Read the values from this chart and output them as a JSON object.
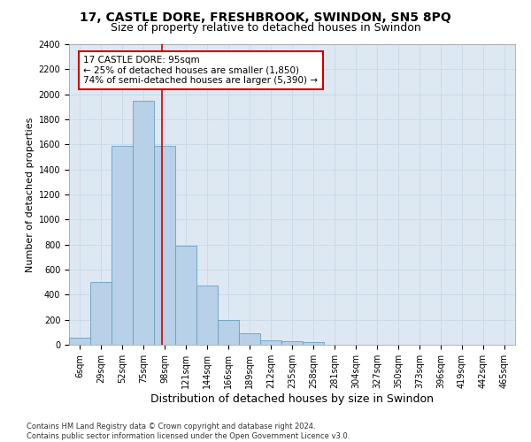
{
  "title1": "17, CASTLE DORE, FRESHBROOK, SWINDON, SN5 8PQ",
  "title2": "Size of property relative to detached houses in Swindon",
  "xlabel": "Distribution of detached houses by size in Swindon",
  "ylabel": "Number of detached properties",
  "footnote1": "Contains HM Land Registry data © Crown copyright and database right 2024.",
  "footnote2": "Contains public sector information licensed under the Open Government Licence v3.0.",
  "categories": [
    "6sqm",
    "29sqm",
    "52sqm",
    "75sqm",
    "98sqm",
    "121sqm",
    "144sqm",
    "166sqm",
    "189sqm",
    "212sqm",
    "235sqm",
    "258sqm",
    "281sqm",
    "304sqm",
    "327sqm",
    "350sqm",
    "373sqm",
    "396sqm",
    "419sqm",
    "442sqm",
    "465sqm"
  ],
  "values": [
    55,
    500,
    1590,
    1950,
    1590,
    790,
    470,
    195,
    90,
    35,
    28,
    20,
    0,
    0,
    0,
    0,
    0,
    0,
    0,
    0,
    0
  ],
  "bar_color": "#b8d0e8",
  "bar_edge_color": "#6a9fc0",
  "ylim": [
    0,
    2400
  ],
  "yticks": [
    0,
    200,
    400,
    600,
    800,
    1000,
    1200,
    1400,
    1600,
    1800,
    2000,
    2200,
    2400
  ],
  "vline_color": "#cc0000",
  "vline_x": 3.87,
  "annotation_title": "17 CASTLE DORE: 95sqm",
  "annotation_line1": "← 25% of detached houses are smaller (1,850)",
  "annotation_line2": "74% of semi-detached houses are larger (5,390) →",
  "annotation_box_color": "#ffffff",
  "annotation_box_edge": "#cc0000",
  "grid_color": "#c8d8e8",
  "bg_color": "#dde8f2",
  "title1_fontsize": 10,
  "title2_fontsize": 9,
  "xlabel_fontsize": 9,
  "ylabel_fontsize": 8,
  "tick_fontsize": 7,
  "annot_fontsize": 7.5
}
